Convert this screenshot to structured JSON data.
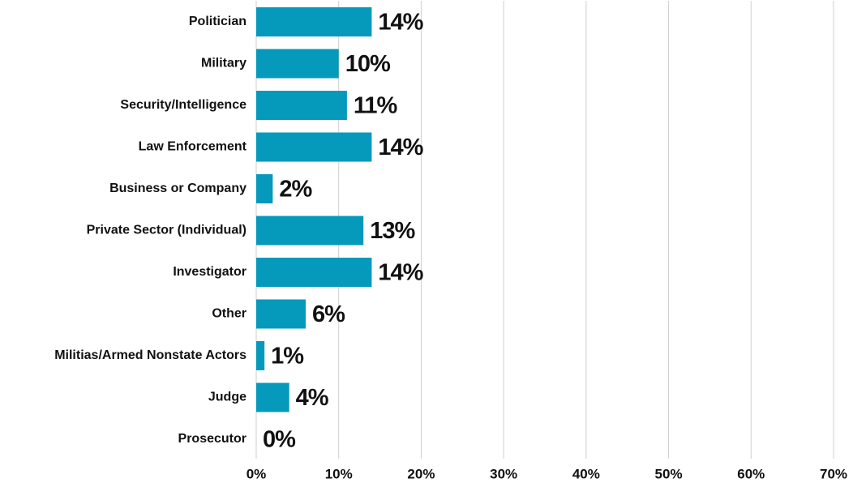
{
  "chart_data": {
    "type": "bar",
    "orientation": "horizontal",
    "categories": [
      "Politician",
      "Military",
      "Security/Intelligence",
      "Law Enforcement",
      "Business or Company",
      "Private Sector (Individual)",
      "Investigator",
      "Other",
      "Militias/Armed Nonstate Actors",
      "Judge",
      "Prosecutor"
    ],
    "values": [
      14,
      10,
      11,
      14,
      2,
      13,
      14,
      6,
      1,
      4,
      0
    ],
    "value_labels": [
      "14%",
      "10%",
      "11%",
      "14%",
      "2%",
      "13%",
      "14%",
      "6%",
      "1%",
      "4%",
      "0%"
    ],
    "color": "#0599bb",
    "xlim": [
      0,
      70
    ],
    "xticks": [
      {
        "value": 0,
        "label": "0%"
      },
      {
        "value": 10,
        "label": "10%"
      },
      {
        "value": 20,
        "label": "20%"
      },
      {
        "value": 30,
        "label": "30%"
      },
      {
        "value": 40,
        "label": "40%"
      },
      {
        "value": 50,
        "label": "50%"
      },
      {
        "value": 60,
        "label": "60%"
      },
      {
        "value": 70,
        "label": "70%"
      }
    ],
    "grid": true
  }
}
